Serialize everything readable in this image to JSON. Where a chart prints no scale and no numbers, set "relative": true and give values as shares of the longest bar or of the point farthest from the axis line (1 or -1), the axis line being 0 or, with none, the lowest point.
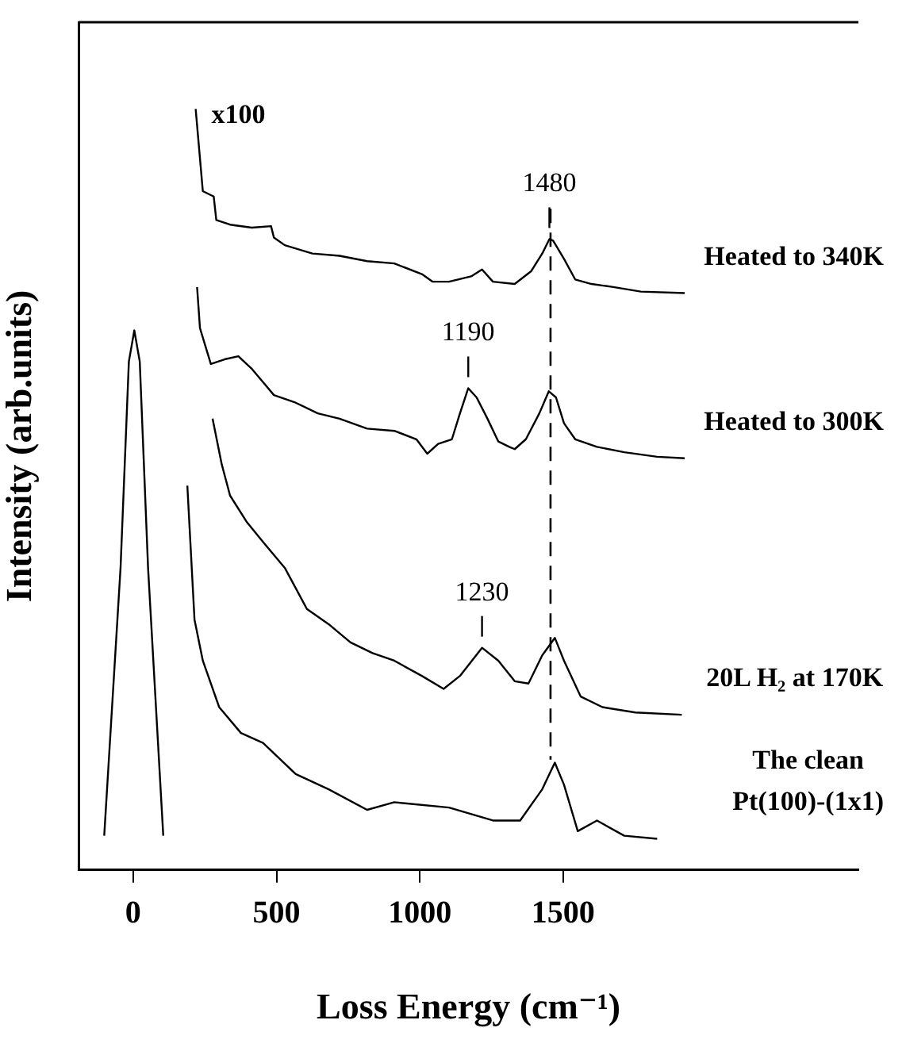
{
  "chart_data": {
    "type": "line",
    "relative": true,
    "xlabel": "Loss Energy (cm⁻¹)",
    "ylabel": "Intensity (arb.units)",
    "xlim": [
      -190,
      2530
    ],
    "xticks": [
      0,
      500,
      1000,
      1500
    ],
    "grid": false,
    "legend": false,
    "marker": "none",
    "line_style": "solid",
    "series": [
      {
        "name": "Heated to 340K",
        "color": "#000000",
        "x": [
          218,
          243,
          281,
          290,
          338,
          414,
          481,
          491,
          529,
          625,
          720,
          816,
          911,
          1007,
          1045,
          1102,
          1179,
          1217,
          1255,
          1331,
          1389,
          1427,
          1452,
          1465,
          1503,
          1542,
          1599,
          1675,
          1771,
          1924
        ],
        "values": [
          1.0,
          0.892,
          0.885,
          0.854,
          0.848,
          0.844,
          0.846,
          0.831,
          0.821,
          0.81,
          0.807,
          0.8,
          0.797,
          0.783,
          0.773,
          0.773,
          0.78,
          0.789,
          0.773,
          0.77,
          0.787,
          0.81,
          0.829,
          0.827,
          0.803,
          0.776,
          0.77,
          0.766,
          0.76,
          0.758
        ]
      },
      {
        "name": "Heated to 300K",
        "color": "#000000",
        "x": [
          223,
          233,
          271,
          319,
          367,
          415,
          453,
          491,
          567,
          644,
          720,
          816,
          911,
          988,
          1026,
          1064,
          1112,
          1140,
          1169,
          1198,
          1236,
          1274,
          1312,
          1331,
          1370,
          1417,
          1450,
          1475,
          1503,
          1542,
          1618,
          1713,
          1828,
          1924
        ],
        "values": [
          0.766,
          0.712,
          0.665,
          0.671,
          0.675,
          0.658,
          0.641,
          0.624,
          0.614,
          0.6,
          0.593,
          0.58,
          0.577,
          0.566,
          0.547,
          0.56,
          0.566,
          0.6,
          0.633,
          0.621,
          0.593,
          0.563,
          0.556,
          0.553,
          0.566,
          0.6,
          0.629,
          0.621,
          0.587,
          0.566,
          0.556,
          0.549,
          0.543,
          0.541
        ]
      },
      {
        "name": "20L H₂ at 170K",
        "color": "#000000",
        "x": [
          277,
          309,
          338,
          395,
          453,
          529,
          606,
          682,
          758,
          835,
          911,
          1007,
          1083,
          1140,
          1217,
          1274,
          1331,
          1379,
          1427,
          1471,
          1503,
          1561,
          1637,
          1752,
          1914
        ],
        "values": [
          0.593,
          0.533,
          0.492,
          0.458,
          0.431,
          0.397,
          0.343,
          0.323,
          0.299,
          0.285,
          0.275,
          0.255,
          0.238,
          0.255,
          0.292,
          0.275,
          0.248,
          0.245,
          0.282,
          0.305,
          0.275,
          0.228,
          0.214,
          0.207,
          0.204
        ]
      },
      {
        "name": "The clean Pt(100)-(1x1)",
        "color": "#000000",
        "x": [
          189,
          214,
          243,
          300,
          376,
          453,
          567,
          682,
          816,
          911,
          1102,
          1255,
          1350,
          1427,
          1471,
          1503,
          1551,
          1618,
          1713,
          1828
        ],
        "values": [
          0.505,
          0.329,
          0.275,
          0.214,
          0.18,
          0.167,
          0.126,
          0.106,
          0.079,
          0.089,
          0.082,
          0.065,
          0.065,
          0.106,
          0.141,
          0.112,
          0.051,
          0.065,
          0.045,
          0.041
        ]
      },
      {
        "color": "#000000",
        "x": [
          -101,
          -44,
          -15,
          4,
          23,
          52,
          105
        ],
        "values": [
          0.045,
          0.397,
          0.668,
          0.709,
          0.668,
          0.397,
          0.045
        ]
      }
    ],
    "ref_lines": [
      {
        "axis": "x",
        "value": 1456,
        "line_style": "dashed",
        "color": "#000000"
      }
    ],
    "annotations": [
      "x100",
      {
        "text": "1480",
        "x": 1452,
        "y": 0.829
      },
      {
        "text": "1190",
        "x": 1169,
        "y": 0.633
      },
      {
        "text": "1230",
        "x": 1217,
        "y": 0.292
      }
    ]
  }
}
